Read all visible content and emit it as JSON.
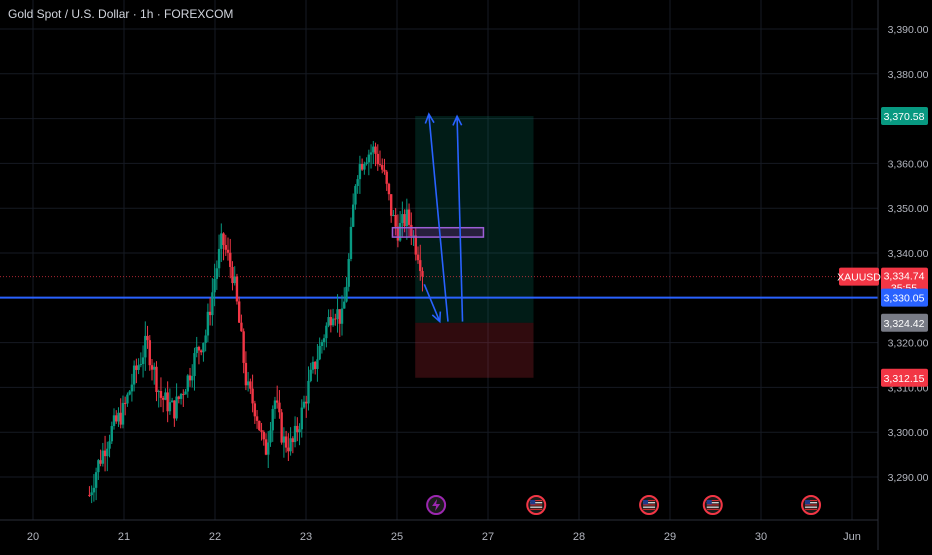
{
  "header": {
    "title": "Gold Spot / U.S. Dollar · 1h · FOREXCOM"
  },
  "chart_data": {
    "type": "candlestick",
    "title": "Gold Spot / U.S. Dollar · 1h · FOREXCOM",
    "symbol": "XAUUSD",
    "y_ticks": [
      "3,390.00",
      "3,380.00",
      "3,370.00",
      "3,360.00",
      "3,350.00",
      "3,340.00",
      "3,330.00",
      "3,320.00",
      "3,310.00",
      "3,300.00",
      "3,290.00"
    ],
    "y_tick_values": [
      3390,
      3380,
      3370,
      3360,
      3350,
      3340,
      3330,
      3320,
      3310,
      3300,
      3290
    ],
    "ylim": [
      3286,
      3395
    ],
    "x_ticks": [
      "20",
      "21",
      "22",
      "23",
      "25",
      "27",
      "28",
      "29",
      "30",
      "Jun"
    ],
    "x_tick_days": [
      0,
      1,
      2,
      3,
      4,
      5,
      6,
      7,
      8,
      9
    ],
    "xlim": [
      -0.3,
      9.6
    ],
    "grid": true,
    "colors": {
      "up": "#089981",
      "down": "#f23645",
      "blue_line": "#2962ff",
      "background": "#000000"
    },
    "horizontal_line": 3330.05,
    "current_price_dotted": 3334.74,
    "price_labels": [
      {
        "name": "target",
        "text": "3,370.58",
        "value": 3370.58,
        "color": "#089981"
      },
      {
        "name": "symbol",
        "text": "XAUUSD",
        "value": 3334.74,
        "color": "#f23645"
      },
      {
        "name": "current-price",
        "text": "3,334.74",
        "value": 3334.74,
        "color": "#f23645"
      },
      {
        "name": "countdown",
        "text": "35:55",
        "value": 3334.74,
        "color": "#f23645"
      },
      {
        "name": "horizontal-line",
        "text": "3,330.05",
        "value": 3330.05,
        "color": "#2962ff"
      },
      {
        "name": "entry",
        "text": "3,324.42",
        "value": 3324.42,
        "color": "#787b86"
      },
      {
        "name": "stop",
        "text": "3,312.15",
        "value": 3312.15,
        "color": "#f23645"
      }
    ],
    "position": {
      "entry": 3324.42,
      "target": 3370.58,
      "stop": 3312.15,
      "x_start": 4.2,
      "x_end": 5.5
    },
    "zone": {
      "top": 3345.2,
      "bottom": 3344.0,
      "x_start": 3.95,
      "x_end": 4.95
    },
    "arrows": [
      {
        "from": [
          4.56,
          3324.7
        ],
        "to": [
          4.35,
          3371.0
        ]
      },
      {
        "from": [
          4.72,
          3324.7
        ],
        "to": [
          4.66,
          3370.5
        ]
      },
      {
        "from": [
          4.3,
          3333.0
        ],
        "to": [
          4.47,
          3324.7
        ]
      }
    ],
    "event_icons": [
      {
        "name": "lightning-event-icon",
        "day": 4.43,
        "color": "#9c27b0"
      },
      {
        "name": "us-flag-event-icon",
        "day": 5.53,
        "color": "#f23645"
      },
      {
        "name": "us-flag-event-icon",
        "day": 6.77,
        "color": "#f23645"
      },
      {
        "name": "us-flag-event-icon",
        "day": 7.47,
        "color": "#f23645"
      },
      {
        "name": "us-flag-event-icon",
        "day": 8.55,
        "color": "#f23645"
      }
    ],
    "candle_anchors": [
      [
        0.62,
        3286
      ],
      [
        0.7,
        3292
      ],
      [
        0.85,
        3300
      ],
      [
        1.0,
        3305
      ],
      [
        1.1,
        3312
      ],
      [
        1.25,
        3320
      ],
      [
        1.4,
        3308
      ],
      [
        1.55,
        3305
      ],
      [
        1.7,
        3312
      ],
      [
        1.8,
        3318
      ],
      [
        1.9,
        3322
      ],
      [
        2.0,
        3335
      ],
      [
        2.08,
        3343
      ],
      [
        2.2,
        3335
      ],
      [
        2.28,
        3322
      ],
      [
        2.35,
        3310
      ],
      [
        2.45,
        3305
      ],
      [
        2.55,
        3295
      ],
      [
        2.65,
        3308
      ],
      [
        2.75,
        3298
      ],
      [
        2.85,
        3297
      ],
      [
        2.95,
        3304
      ],
      [
        3.05,
        3312
      ],
      [
        3.2,
        3322
      ],
      [
        3.3,
        3328
      ],
      [
        3.4,
        3325
      ],
      [
        3.48,
        3340
      ],
      [
        3.55,
        3358
      ],
      [
        3.65,
        3362
      ],
      [
        3.75,
        3363
      ],
      [
        3.85,
        3358
      ],
      [
        3.95,
        3348
      ],
      [
        4.0,
        3345
      ],
      [
        4.05,
        3346
      ],
      [
        4.1,
        3348
      ],
      [
        4.15,
        3346
      ],
      [
        4.2,
        3342
      ],
      [
        4.24,
        3340
      ],
      [
        4.28,
        3336
      ]
    ],
    "candle_count": 150
  }
}
